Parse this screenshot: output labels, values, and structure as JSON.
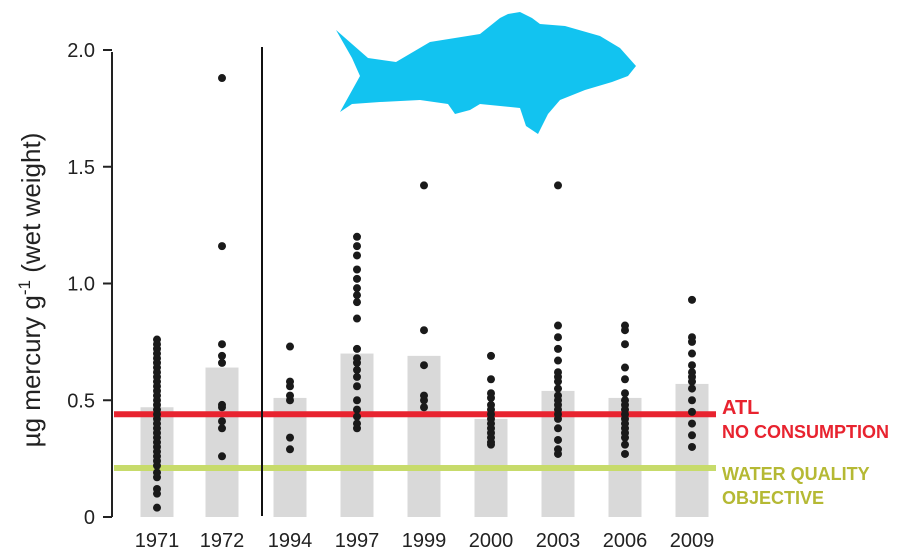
{
  "chart_data": {
    "type": "bar",
    "ylabel_main": "µg mercury g",
    "ylabel_sup": "-1",
    "ylabel_tail": " (wet weight)",
    "ylim": [
      0,
      2.0
    ],
    "y_ticks": [
      "0",
      "0.5",
      "1.0",
      "1.5",
      "2.0"
    ],
    "categories": [
      "1971",
      "1972",
      "1994",
      "1997",
      "1999",
      "2000",
      "2003",
      "2006",
      "2009"
    ],
    "bar_values": [
      0.47,
      0.64,
      0.51,
      0.7,
      0.69,
      0.42,
      0.54,
      0.51,
      0.57
    ],
    "points": [
      [
        0.76,
        0.74,
        0.72,
        0.7,
        0.68,
        0.66,
        0.64,
        0.62,
        0.6,
        0.58,
        0.56,
        0.54,
        0.52,
        0.5,
        0.48,
        0.46,
        0.44,
        0.42,
        0.4,
        0.38,
        0.36,
        0.34,
        0.32,
        0.3,
        0.28,
        0.26,
        0.24,
        0.22,
        0.19,
        0.17,
        0.12,
        0.1,
        0.04
      ],
      [
        1.88,
        1.16,
        0.74,
        0.69,
        0.66,
        0.48,
        0.47,
        0.41,
        0.38,
        0.26
      ],
      [
        0.73,
        0.58,
        0.56,
        0.52,
        0.5,
        0.34,
        0.29
      ],
      [
        1.2,
        1.16,
        1.12,
        1.06,
        1.02,
        0.98,
        0.95,
        0.92,
        0.85,
        0.72,
        0.68,
        0.66,
        0.63,
        0.6,
        0.56,
        0.5,
        0.46,
        0.43,
        0.4,
        0.38
      ],
      [
        1.42,
        0.8,
        0.65,
        0.52,
        0.5,
        0.47
      ],
      [
        0.69,
        0.59,
        0.53,
        0.51,
        0.48,
        0.46,
        0.44,
        0.42,
        0.4,
        0.38,
        0.36,
        0.34,
        0.32,
        0.31
      ],
      [
        1.42,
        0.82,
        0.77,
        0.72,
        0.67,
        0.62,
        0.6,
        0.58,
        0.55,
        0.52,
        0.5,
        0.48,
        0.46,
        0.44,
        0.42,
        0.38,
        0.33,
        0.29,
        0.27
      ],
      [
        0.82,
        0.8,
        0.74,
        0.64,
        0.59,
        0.53,
        0.5,
        0.48,
        0.46,
        0.44,
        0.42,
        0.4,
        0.38,
        0.36,
        0.34,
        0.31,
        0.27
      ],
      [
        0.93,
        0.77,
        0.75,
        0.7,
        0.65,
        0.62,
        0.6,
        0.58,
        0.55,
        0.5,
        0.45,
        0.4,
        0.35,
        0.3
      ]
    ],
    "reference_lines": [
      {
        "value": 0.44,
        "color": "#e8232f",
        "labels": [
          "ATL",
          "NO CONSUMPTION"
        ]
      },
      {
        "value": 0.21,
        "color": "#c7db6b",
        "labels": [
          "WATER QUALITY",
          "OBJECTIVE"
        ]
      }
    ],
    "colors": {
      "bar": "#d9d9d9",
      "points": "#1a1a1a",
      "fish": "#12c3f0",
      "ann_red": "#e8232f",
      "ann_green": "#b5b934"
    },
    "icon": "fish-icon",
    "divider_after_category": "1972"
  }
}
